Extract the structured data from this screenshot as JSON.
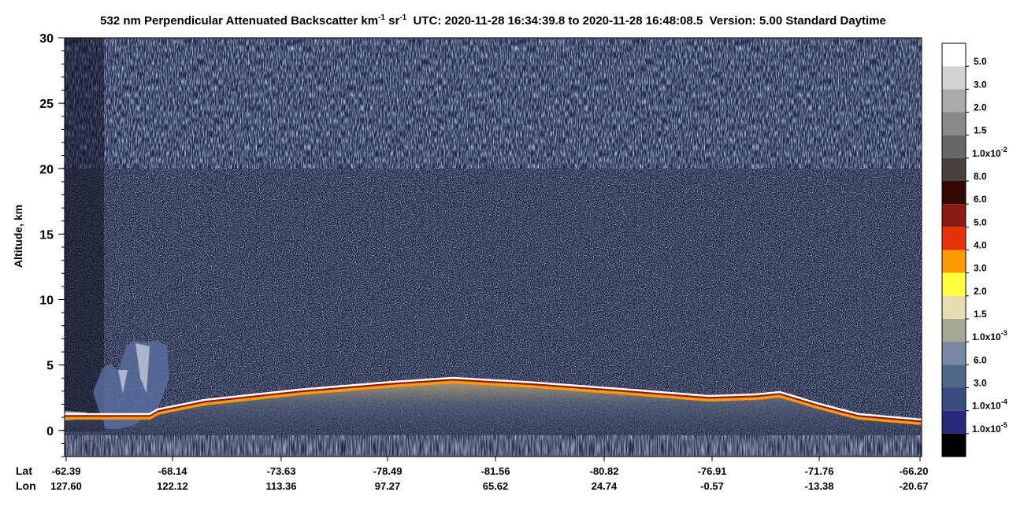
{
  "chart_data": {
    "type": "heatmap",
    "title": [
      "532 nm Perpendicular Attenuated Backscatter km",
      "-1",
      " sr",
      "-1",
      "  UTC: 2020-11-28 16:34:39.8 to 2020-11-28 16:48:08.5  Version: 5.00 Standard Daytime"
    ],
    "ylabel": "Altitude, km",
    "ylim": [
      -2,
      30
    ],
    "yticks": [
      0,
      5,
      10,
      15,
      20,
      25,
      30
    ],
    "xaxis": [
      {
        "name": "Lat",
        "labels": [
          "-62.39",
          "-68.14",
          "-73.63",
          "-78.49",
          "-81.56",
          "-80.82",
          "-76.91",
          "-71.76",
          "-66.20"
        ]
      },
      {
        "name": "Lon",
        "labels": [
          "127.60",
          "122.12",
          "113.36",
          "97.27",
          "65.62",
          "24.74",
          "-0.57",
          "-13.38",
          "-20.67"
        ]
      }
    ],
    "colorbar": {
      "colors": [
        "#ffffff",
        "#d2d2d2",
        "#aaaaaa",
        "#888888",
        "#666666",
        "#4a403c",
        "#360808",
        "#8c1a14",
        "#e8300a",
        "#ff9a00",
        "#ffff40",
        "#e8dcb0",
        "#a8a898",
        "#7888a0",
        "#506888",
        "#384c80",
        "#28287a",
        "#000000"
      ],
      "labels": [
        "5.0",
        "3.0",
        "2.0",
        "1.5",
        [
          "1.0x10",
          "-2"
        ],
        "8.0",
        "6.0",
        "5.0",
        "4.0",
        "3.0",
        "2.0",
        "1.5",
        [
          "1.0x10",
          "-3"
        ],
        "6.0",
        "3.0",
        [
          "1.0x10",
          "-4"
        ],
        [
          "1.0x10",
          "-5"
        ]
      ]
    }
  }
}
